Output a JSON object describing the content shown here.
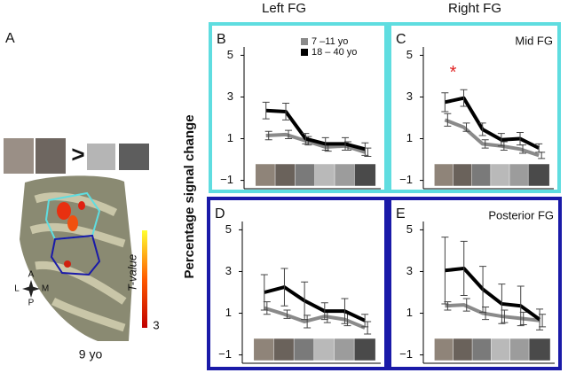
{
  "column_titles": [
    "Left FG",
    "Right FG"
  ],
  "y_axis_label": "Percentage signal change",
  "panel_a": {
    "label": "A",
    "comparison": ">",
    "compass": [
      "A",
      "P",
      "L",
      "M"
    ],
    "colorbar_label": "T-value",
    "colorbar_tick": "3",
    "age": "9 yo"
  },
  "chart_data": [
    {
      "type": "line",
      "panel": "B",
      "frame_color": "#5fdde0",
      "categories": [
        null,
        null,
        null,
        null,
        null,
        null
      ],
      "ylim": [
        -1.4,
        5.4
      ],
      "yticks": [
        {
          "value": 5,
          "label": "5"
        },
        {
          "value": 3,
          "label": "3"
        },
        {
          "value": 1,
          "label": "1"
        },
        {
          "value": -1,
          "label": "−1"
        }
      ],
      "legend": "upper right",
      "series": [
        {
          "name": "7 –11 yo",
          "color": "#8a8a8a",
          "values": [
            1.15,
            1.2,
            0.9,
            0.6,
            0.65,
            0.35
          ],
          "errors": [
            0.2,
            0.2,
            0.2,
            0.2,
            0.2,
            0.2
          ]
        },
        {
          "name": "18 – 40 yo",
          "color": "#000000",
          "values": [
            2.35,
            2.3,
            1.0,
            0.75,
            0.75,
            0.5
          ],
          "errors": [
            0.4,
            0.4,
            0.25,
            0.3,
            0.3,
            0.3
          ]
        }
      ]
    },
    {
      "type": "line",
      "panel": "C",
      "title": "Mid FG",
      "frame_color": "#5fdde0",
      "annotation": "*",
      "categories": [
        null,
        null,
        null,
        null,
        null,
        null
      ],
      "ylim": [
        -1.4,
        5.4
      ],
      "yticks": [
        {
          "value": 5,
          "label": "5"
        },
        {
          "value": 3,
          "label": "3"
        },
        {
          "value": 1,
          "label": "1"
        },
        {
          "value": -1,
          "label": "−1"
        }
      ],
      "series": [
        {
          "color": "#8a8a8a",
          "values": [
            1.9,
            1.55,
            0.75,
            0.65,
            0.5,
            0.2
          ],
          "errors": [
            0.3,
            0.2,
            0.2,
            0.2,
            0.2,
            0.15
          ]
        },
        {
          "color": "#000000",
          "values": [
            2.75,
            2.95,
            1.45,
            0.95,
            1.0,
            0.55
          ],
          "errors": [
            0.45,
            0.4,
            0.3,
            0.3,
            0.3,
            0.2
          ]
        }
      ]
    },
    {
      "type": "line",
      "panel": "D",
      "frame_color": "#1a1aa8",
      "categories": [
        null,
        null,
        null,
        null,
        null,
        null
      ],
      "ylim": [
        -1.4,
        5.4
      ],
      "yticks": [
        {
          "value": 5,
          "label": "5"
        },
        {
          "value": 3,
          "label": "3"
        },
        {
          "value": 1,
          "label": "1"
        },
        {
          "value": -1,
          "label": "−1"
        }
      ],
      "series": [
        {
          "color": "#8a8a8a",
          "values": [
            1.25,
            0.95,
            0.6,
            0.85,
            0.7,
            0.3
          ],
          "errors": [
            0.3,
            0.2,
            0.3,
            0.3,
            0.3,
            0.3
          ]
        },
        {
          "color": "#000000",
          "values": [
            2.0,
            2.25,
            1.6,
            1.1,
            1.1,
            0.65
          ],
          "errors": [
            0.85,
            0.9,
            0.9,
            0.4,
            0.6,
            0.3
          ]
        }
      ]
    },
    {
      "type": "line",
      "panel": "E",
      "title": "Posterior FG",
      "frame_color": "#1a1aa8",
      "categories": [
        null,
        null,
        null,
        null,
        null,
        null
      ],
      "ylim": [
        -1.4,
        5.4
      ],
      "yticks": [
        {
          "value": 5,
          "label": "5"
        },
        {
          "value": 3,
          "label": "3"
        },
        {
          "value": 1,
          "label": "1"
        },
        {
          "value": -1,
          "label": "−1"
        }
      ],
      "series": [
        {
          "color": "#8a8a8a",
          "values": [
            1.35,
            1.4,
            1.0,
            0.85,
            0.75,
            0.65
          ],
          "errors": [
            0.2,
            0.3,
            0.3,
            0.3,
            0.3,
            0.3
          ]
        },
        {
          "color": "#000000",
          "values": [
            3.05,
            3.15,
            2.15,
            1.45,
            1.35,
            0.7
          ],
          "errors": [
            1.6,
            1.3,
            1.1,
            0.95,
            0.95,
            0.5
          ]
        }
      ]
    }
  ]
}
